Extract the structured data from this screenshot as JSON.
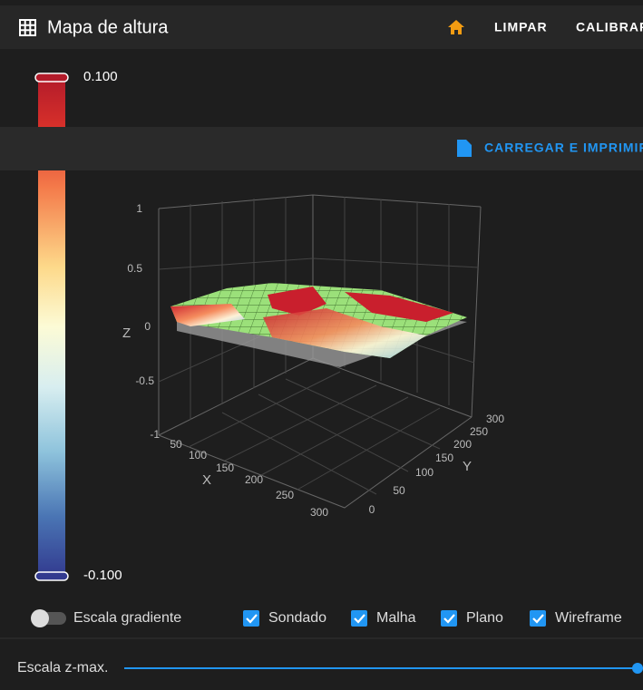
{
  "header": {
    "title": "Mapa de altura",
    "actions": [
      "LIMPAR",
      "CALIBRAR"
    ]
  },
  "overlay": {
    "action": "CARREGAR E IMPRIMIR"
  },
  "colorbar": {
    "max": "0.100",
    "min": "-0.100"
  },
  "plot": {
    "z_label": "Z",
    "x_label": "X",
    "y_label": "Y",
    "z_ticks": [
      "1",
      "0.5",
      "0",
      "-0.5",
      "-1"
    ],
    "x_ticks": [
      "50",
      "100",
      "150",
      "200",
      "250",
      "300"
    ],
    "y_ticks": [
      "0",
      "50",
      "100",
      "150",
      "200",
      "250",
      "300"
    ]
  },
  "controls": {
    "toggle": "Escala gradiente",
    "checkboxes": [
      "Sondado",
      "Malha",
      "Plano",
      "Wireframe"
    ],
    "slider": "Escala z-max."
  }
}
